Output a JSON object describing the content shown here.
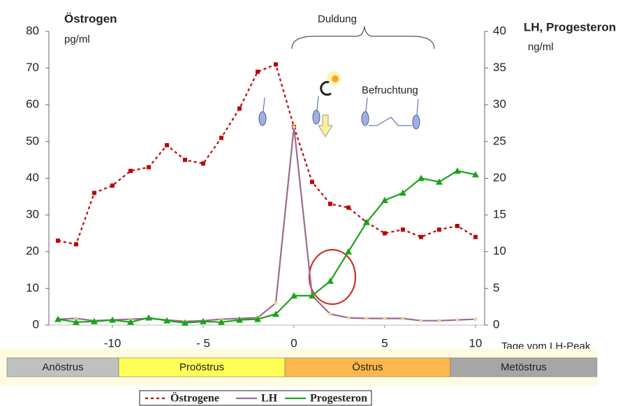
{
  "chart_data": {
    "type": "line",
    "y_title": "Östrogen",
    "y_unit": "pg/ml",
    "y2_title": "LH, Progesteron",
    "y2_unit": "ng/ml",
    "x_title": "Tage vom LH-Peak",
    "annotations": [
      "Duldung",
      "Befruchtung"
    ],
    "x": [
      -13,
      -12,
      -11,
      -10,
      -9,
      -8,
      -7,
      -6,
      -5,
      -4,
      -3,
      -2,
      -1,
      0,
      1,
      2,
      3,
      4,
      5,
      6,
      7,
      8,
      9,
      10
    ],
    "xlim": [
      -13.5,
      10.5
    ],
    "xticks": [
      -10,
      {
        "value": -5,
        "label": "- 5"
      },
      0,
      5,
      10
    ],
    "ylim": [
      0,
      80
    ],
    "yticks": [
      0,
      10,
      20,
      30,
      40,
      50,
      60,
      70,
      80
    ],
    "y2lim": [
      0,
      40
    ],
    "y2ticks": [
      0,
      5,
      10,
      15,
      20,
      25,
      30,
      35,
      40
    ],
    "series": [
      {
        "name": "Östrogene",
        "color": "#c00000",
        "marker": "square",
        "dash": true,
        "values": [
          23,
          22,
          36,
          38,
          42,
          43,
          49,
          45,
          44,
          51,
          59,
          69,
          71,
          54,
          39,
          33,
          32,
          28,
          25,
          26,
          24,
          26,
          27,
          24
        ]
      },
      {
        "name": "LH",
        "color": "#9b6b8f",
        "marker": "dot",
        "axis": "y2",
        "values": [
          0.8,
          0.9,
          0.6,
          0.7,
          0.8,
          0.9,
          0.7,
          0.5,
          0.6,
          0.8,
          0.9,
          1,
          3,
          27,
          4,
          1.5,
          1,
          0.9,
          0.9,
          0.9,
          0.6,
          0.6,
          0.7,
          0.8
        ]
      },
      {
        "name": "Progesteron",
        "color": "#1aa31a",
        "marker": "triangle",
        "axis": "y2",
        "values": [
          0.8,
          0.4,
          0.5,
          0.7,
          0.4,
          1,
          0.6,
          0.3,
          0.5,
          0.4,
          0.7,
          0.8,
          1.5,
          4,
          4,
          6,
          10,
          14,
          17,
          18,
          20,
          19.5,
          21,
          20.5
        ]
      }
    ],
    "phases": [
      {
        "name": "Anöstrus",
        "color": "#c0c0c0"
      },
      {
        "name": "Proöstrus",
        "color": "#ffff55"
      },
      {
        "name": "Östrus",
        "color": "#ffb84d"
      },
      {
        "name": "Metöstrus",
        "color": "#a6a6a6"
      }
    ]
  }
}
